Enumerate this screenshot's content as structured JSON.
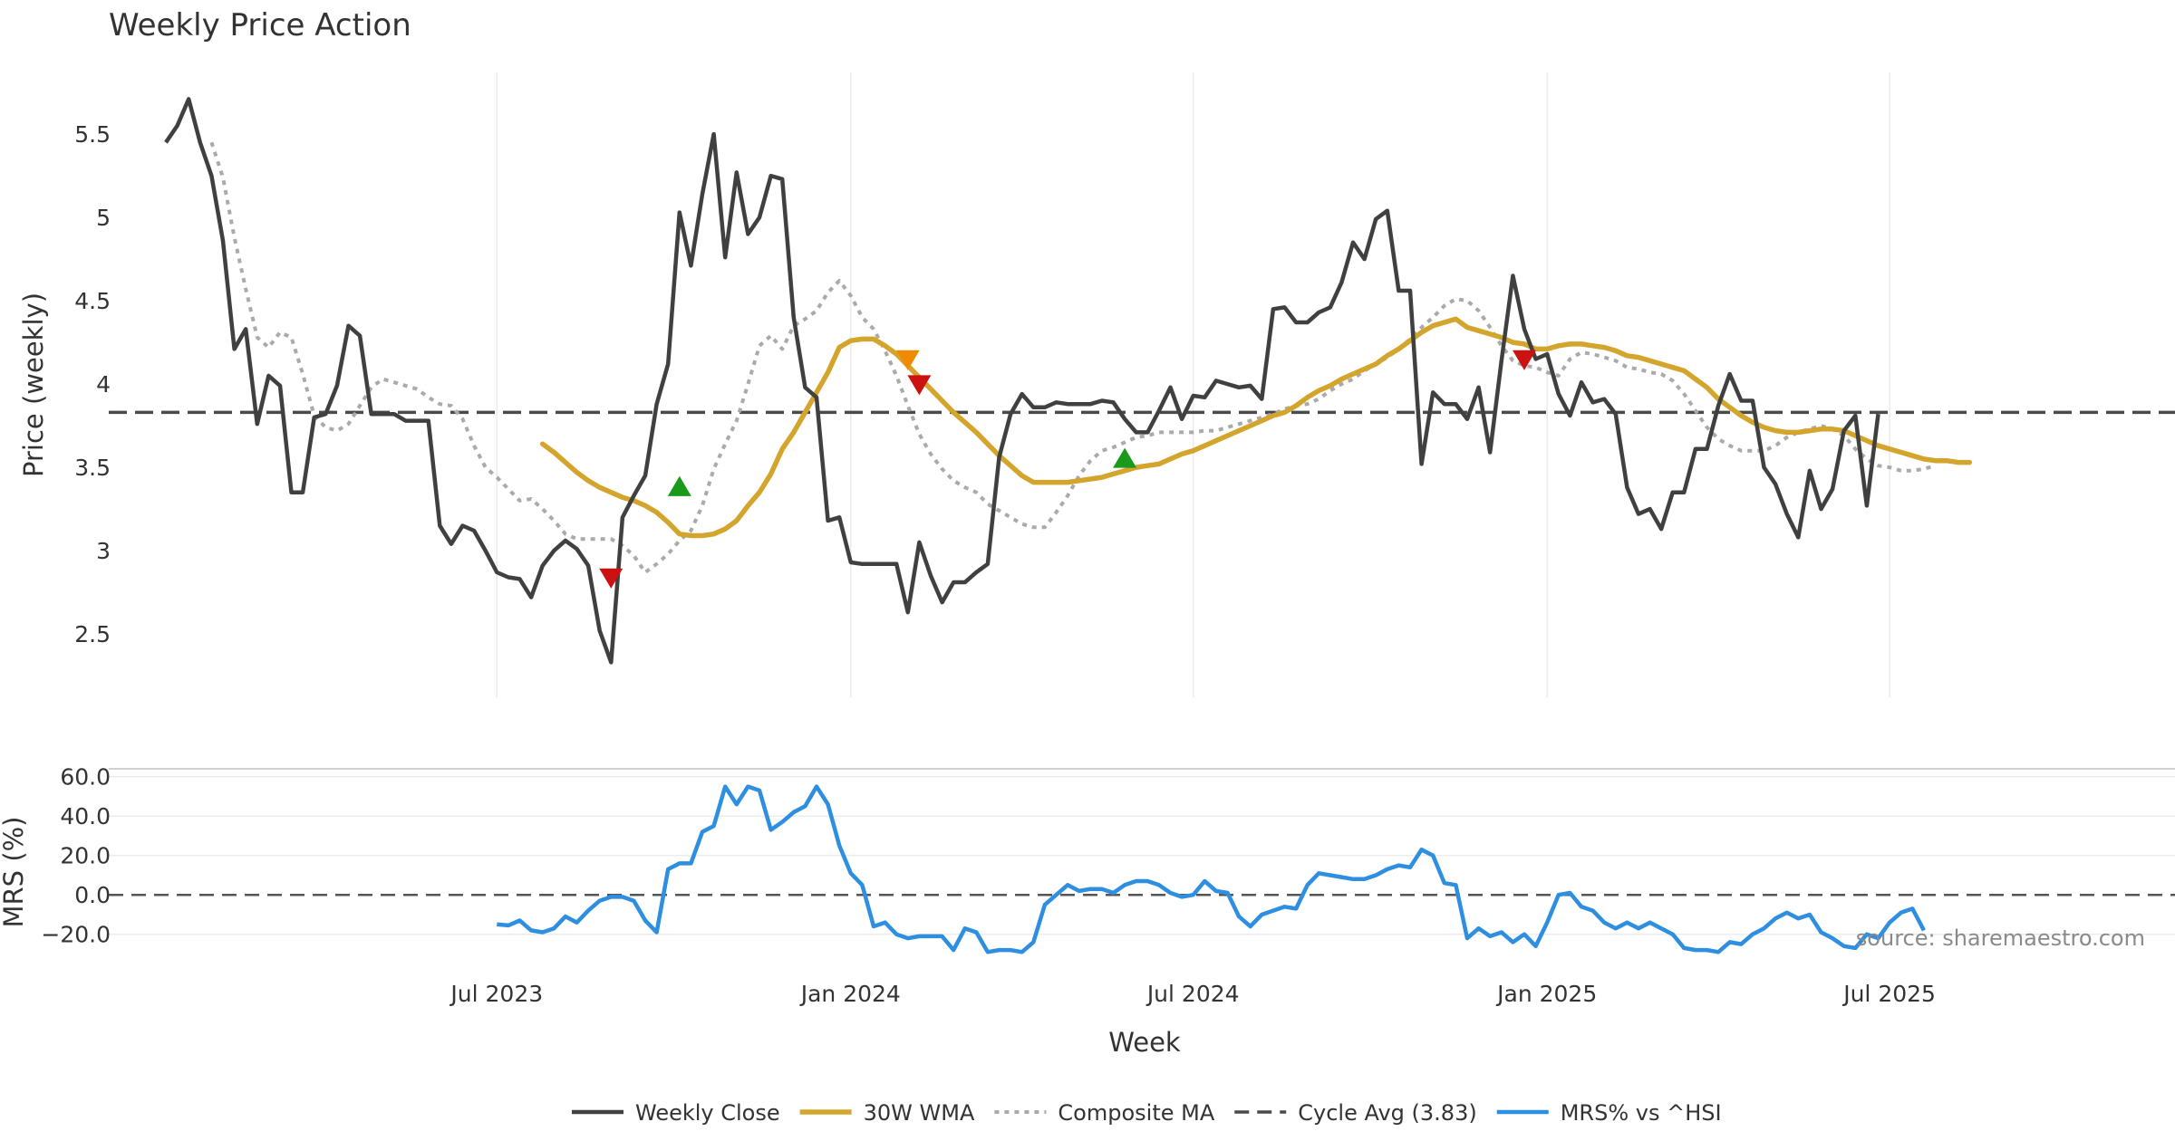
{
  "chart_data": {
    "type": "line",
    "title": "Weekly Price Action",
    "xlabel": "Week",
    "x_range": [
      -5,
      176
    ],
    "x_ticks": [
      {
        "label": "Jul 2023",
        "x": 29
      },
      {
        "label": "Jan 2024",
        "x": 60
      },
      {
        "label": "Jul 2024",
        "x": 90
      },
      {
        "label": "Jan 2025",
        "x": 121
      },
      {
        "label": "Jul 2025",
        "x": 151
      }
    ],
    "source": "source: sharemaestro.com",
    "legend": [
      {
        "label": "Weekly Close",
        "color": "#404040",
        "dash": "solid"
      },
      {
        "label": "30W WMA",
        "color": "#d4a52c",
        "dash": "solid"
      },
      {
        "label": "Composite MA",
        "color": "#aaaaaa",
        "dash": "dotted"
      },
      {
        "label": "Cycle Avg (3.83)",
        "color": "#4a4a4a",
        "dash": "dashed"
      },
      {
        "label": "MRS% vs ^HSI",
        "color": "#2e8ee0",
        "dash": "solid"
      }
    ],
    "price_panel": {
      "ylabel": "Price (weekly)",
      "ylim": [
        2.12,
        5.87
      ],
      "yticks": [
        2.5,
        3,
        3.5,
        4,
        4.5,
        5,
        5.5
      ],
      "ytick_labels": [
        "2.5",
        "3",
        "3.5",
        "4",
        "4.5",
        "5",
        "5.5"
      ],
      "cycle_avg": 3.83,
      "series": [
        {
          "name": "Weekly Close",
          "color": "#404040",
          "values": [
            5.45,
            5.55,
            5.71,
            5.45,
            5.25,
            4.86,
            4.21,
            4.33,
            3.76,
            4.05,
            3.99,
            3.35,
            3.35,
            3.8,
            3.82,
            3.99,
            4.35,
            4.29,
            3.82,
            3.82,
            3.82,
            3.78,
            3.78,
            3.78,
            3.15,
            3.04,
            3.15,
            3.12,
            3.0,
            2.87,
            2.84,
            2.83,
            2.72,
            2.91,
            3.0,
            3.06,
            3.01,
            2.91,
            2.52,
            2.33,
            3.2,
            3.33,
            3.45,
            3.88,
            4.12,
            5.03,
            4.71,
            5.14,
            5.5,
            4.76,
            5.27,
            4.9,
            5.0,
            5.25,
            5.23,
            4.4,
            3.98,
            3.92,
            3.18,
            3.2,
            2.93,
            2.92,
            2.92,
            2.92,
            2.92,
            2.63,
            3.05,
            2.85,
            2.69,
            2.81,
            2.81,
            2.87,
            2.92,
            3.56,
            3.82,
            3.94,
            3.86,
            3.86,
            3.89,
            3.88,
            3.88,
            3.88,
            3.9,
            3.89,
            3.79,
            3.71,
            3.71,
            3.84,
            3.98,
            3.79,
            3.93,
            3.92,
            4.02,
            4.0,
            3.98,
            3.99,
            3.91,
            4.45,
            4.46,
            4.37,
            4.37,
            4.43,
            4.46,
            4.61,
            4.85,
            4.75,
            4.99,
            5.04,
            4.56,
            4.56,
            3.52,
            3.95,
            3.88,
            3.88,
            3.79,
            3.98,
            3.59,
            4.14,
            4.65,
            4.33,
            4.15,
            4.18,
            3.94,
            3.81,
            4.01,
            3.89,
            3.91,
            3.82,
            3.38,
            3.22,
            3.25,
            3.13,
            3.35,
            3.35,
            3.61,
            3.61,
            3.87,
            4.06,
            3.9,
            3.9,
            3.5,
            3.4,
            3.22,
            3.08,
            3.48,
            3.25,
            3.37,
            3.72,
            3.81,
            3.27,
            3.82
          ]
        },
        {
          "name": "30W WMA",
          "color": "#d4a52c",
          "start": 33,
          "values": [
            3.64,
            3.59,
            3.53,
            3.47,
            3.42,
            3.38,
            3.35,
            3.32,
            3.3,
            3.27,
            3.23,
            3.17,
            3.1,
            3.09,
            3.09,
            3.1,
            3.13,
            3.18,
            3.27,
            3.35,
            3.46,
            3.61,
            3.71,
            3.83,
            3.95,
            4.07,
            4.22,
            4.26,
            4.27,
            4.27,
            4.23,
            4.18,
            4.11,
            4.04,
            3.97,
            3.9,
            3.83,
            3.77,
            3.71,
            3.64,
            3.57,
            3.51,
            3.45,
            3.41,
            3.41,
            3.41,
            3.41,
            3.42,
            3.43,
            3.44,
            3.46,
            3.48,
            3.5,
            3.51,
            3.52,
            3.55,
            3.58,
            3.6,
            3.63,
            3.66,
            3.69,
            3.72,
            3.75,
            3.78,
            3.81,
            3.83,
            3.87,
            3.92,
            3.96,
            3.99,
            4.03,
            4.06,
            4.09,
            4.12,
            4.17,
            4.21,
            4.26,
            4.31,
            4.35,
            4.37,
            4.39,
            4.34,
            4.32,
            4.3,
            4.28,
            4.25,
            4.24,
            4.21,
            4.21,
            4.23,
            4.24,
            4.24,
            4.23,
            4.22,
            4.2,
            4.17,
            4.16,
            4.14,
            4.12,
            4.1,
            4.08,
            4.03,
            3.98,
            3.91,
            3.86,
            3.81,
            3.77,
            3.74,
            3.72,
            3.71,
            3.71,
            3.72,
            3.73,
            3.73,
            3.72,
            3.69,
            3.66,
            3.63,
            3.61,
            3.59,
            3.57,
            3.55,
            3.54,
            3.54,
            3.53,
            3.53
          ]
        },
        {
          "name": "Composite MA",
          "color": "#aaaaaa",
          "start": 4,
          "values": [
            5.45,
            5.24,
            4.88,
            4.57,
            4.28,
            4.22,
            4.31,
            4.28,
            4.06,
            3.81,
            3.74,
            3.72,
            3.76,
            3.87,
            3.98,
            4.03,
            4.01,
            3.99,
            3.97,
            3.92,
            3.88,
            3.87,
            3.79,
            3.63,
            3.5,
            3.44,
            3.37,
            3.3,
            3.31,
            3.25,
            3.18,
            3.1,
            3.07,
            3.07,
            3.07,
            3.07,
            3.03,
            2.97,
            2.87,
            2.92,
            2.98,
            3.06,
            3.12,
            3.27,
            3.49,
            3.64,
            3.78,
            4.0,
            4.23,
            4.29,
            4.21,
            4.35,
            4.39,
            4.44,
            4.55,
            4.62,
            4.53,
            4.4,
            4.33,
            4.2,
            4.05,
            3.87,
            3.7,
            3.58,
            3.49,
            3.42,
            3.38,
            3.35,
            3.28,
            3.24,
            3.2,
            3.16,
            3.14,
            3.14,
            3.23,
            3.33,
            3.45,
            3.54,
            3.6,
            3.62,
            3.65,
            3.68,
            3.69,
            3.71,
            3.71,
            3.71,
            3.71,
            3.72,
            3.72,
            3.74,
            3.76,
            3.78,
            3.8,
            3.82,
            3.85,
            3.87,
            3.88,
            3.91,
            3.96,
            4.0,
            4.03,
            4.08,
            4.12,
            4.16,
            4.21,
            4.27,
            4.34,
            4.4,
            4.47,
            4.51,
            4.5,
            4.44,
            4.34,
            4.23,
            4.14,
            4.11,
            4.1,
            4.07,
            4.05,
            4.15,
            4.19,
            4.18,
            4.16,
            4.14,
            4.1,
            4.09,
            4.07,
            4.06,
            4.02,
            3.94,
            3.84,
            3.74,
            3.67,
            3.63,
            3.6,
            3.6,
            3.6,
            3.63,
            3.68,
            3.71,
            3.73,
            3.75,
            3.73,
            3.69,
            3.61,
            3.55,
            3.51,
            3.5,
            3.48,
            3.48,
            3.49,
            3.51
          ]
        }
      ],
      "markers": [
        {
          "x": 39,
          "y": 2.84,
          "type": "down",
          "color": "#cc1111"
        },
        {
          "x": 45,
          "y": 3.38,
          "type": "up",
          "color": "#1a9a1a"
        },
        {
          "x": 65,
          "y": 4.15,
          "type": "down",
          "color": "#f08a00"
        },
        {
          "x": 66,
          "y": 4.0,
          "type": "down",
          "color": "#cc1111"
        },
        {
          "x": 84,
          "y": 3.55,
          "type": "up",
          "color": "#1a9a1a"
        },
        {
          "x": 119,
          "y": 4.15,
          "type": "down",
          "color": "#cc1111"
        }
      ]
    },
    "mrs_panel": {
      "ylabel": "MRS (%)",
      "ylim": [
        -33,
        64
      ],
      "yticks": [
        -20,
        0,
        20,
        40,
        60
      ],
      "ytick_labels": [
        "−20.0",
        "0.0",
        "20.0",
        "40.0",
        "60.0"
      ],
      "series": [
        {
          "name": "MRS% vs ^HSI",
          "color": "#2e8ee0",
          "start": 29,
          "values": [
            -15,
            -15.5,
            -13,
            -18,
            -19,
            -17,
            -11,
            -14,
            -8,
            -3,
            -1,
            -1,
            -3,
            -13,
            -19,
            13,
            16,
            16,
            32,
            35,
            55,
            46,
            55,
            53,
            33,
            37,
            42,
            45,
            55,
            46,
            25,
            11,
            5,
            -16,
            -14,
            -20,
            -22,
            -21,
            -21,
            -21,
            -28,
            -17,
            -19,
            -29,
            -28,
            -28,
            -29,
            -24,
            -5,
            0,
            5,
            2,
            3,
            3,
            1,
            5,
            7,
            7,
            5,
            1,
            -1,
            0,
            7,
            2,
            1,
            -11,
            -16,
            -10,
            -8,
            -6,
            -7,
            5,
            11,
            10,
            9,
            8,
            8,
            10,
            13,
            15,
            14,
            23,
            20,
            6,
            5,
            -22,
            -17,
            -21,
            -19,
            -24,
            -20,
            -26,
            -14,
            0,
            1,
            -6,
            -8,
            -14,
            -17,
            -14,
            -17,
            -14,
            -17,
            -20,
            -27,
            -28,
            -28,
            -29,
            -24,
            -25,
            -20,
            -17,
            -12,
            -9,
            -12,
            -10,
            -19,
            -22,
            -26,
            -27,
            -20,
            -22,
            -14,
            -9,
            -7,
            -18
          ]
        }
      ]
    }
  }
}
